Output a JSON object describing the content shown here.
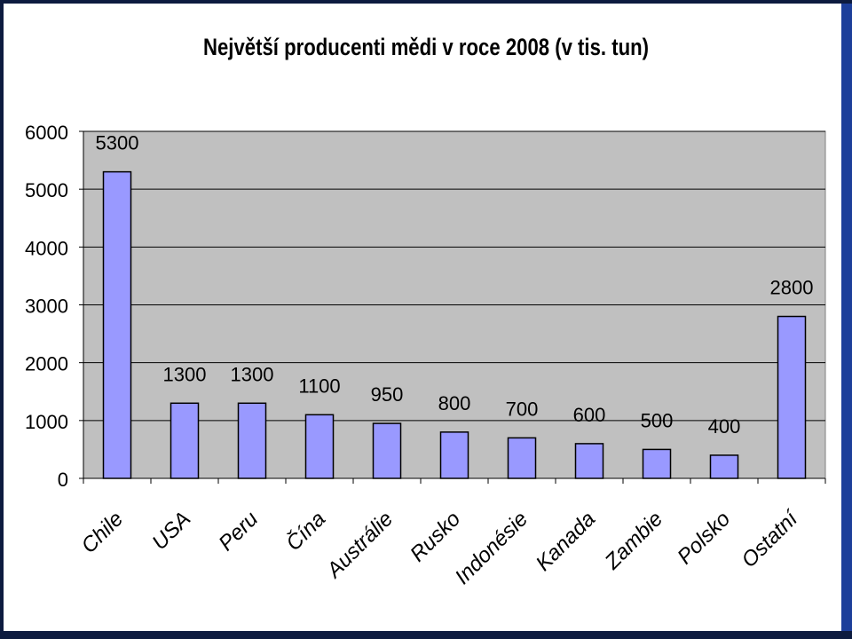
{
  "chart_data": {
    "type": "bar",
    "title": "Největší producenti mědi v roce 2008 (v tis. tun)",
    "categories": [
      "Chile",
      "USA",
      "Peru",
      "Čína",
      "Austrálie",
      "Rusko",
      "Indonésie",
      "Kanada",
      "Zambie",
      "Polsko",
      "Ostatní"
    ],
    "values": [
      5300,
      1300,
      1300,
      1100,
      950,
      800,
      700,
      600,
      500,
      400,
      2800
    ],
    "ylim": [
      0,
      6000
    ],
    "yticks": [
      0,
      1000,
      2000,
      3000,
      4000,
      5000,
      6000
    ],
    "grid": true,
    "legend": "none",
    "colors": {
      "bar_fill": "#9999ff",
      "bar_stroke": "#000000",
      "plot_bg": "#c0c0c0",
      "grid": "#000000"
    }
  }
}
